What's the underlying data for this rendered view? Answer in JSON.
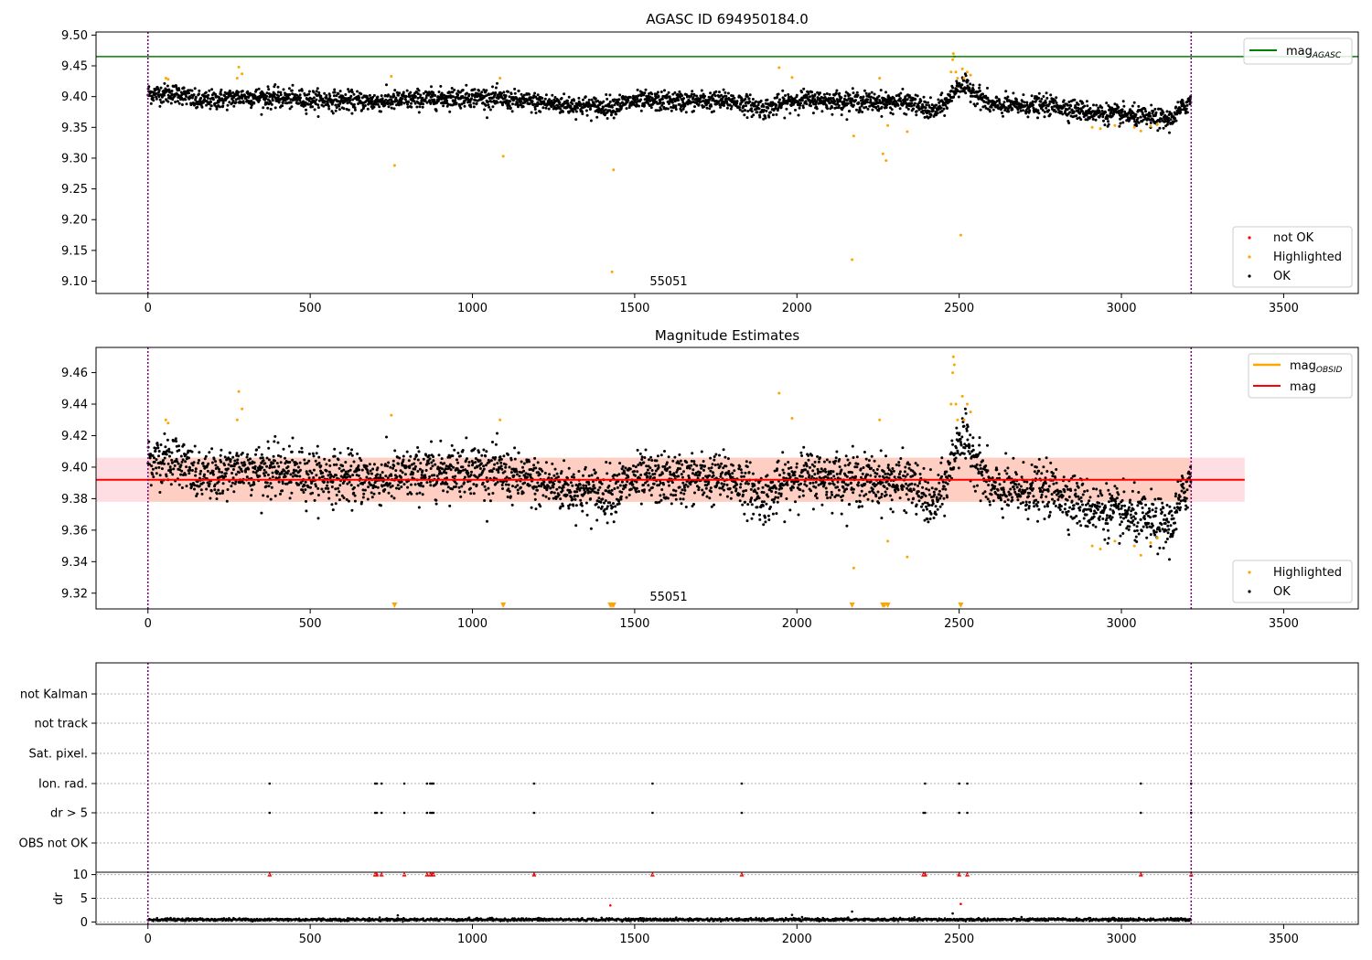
{
  "figure_title": "AGASC ID 694950184.0",
  "colors": {
    "ok": "#000000",
    "highlighted": "#ffa500",
    "not_ok": "#ff0000",
    "mag_agasc": "#008000",
    "mag_obsid": "#ffa500",
    "mag": "#ff0000",
    "band": "#ffb6c1",
    "obs_boundary": "#800080",
    "grid": "#b0b0b0"
  },
  "chart_data": [
    {
      "type": "scatter",
      "title": "AGASC ID 694950184.0",
      "xlim": [
        -160,
        3730
      ],
      "ylim": [
        9.08,
        9.505
      ],
      "x_ticks": [
        0,
        500,
        1000,
        1500,
        2000,
        2500,
        3000,
        3500
      ],
      "y_ticks": [
        9.1,
        9.15,
        9.2,
        9.25,
        9.3,
        9.35,
        9.4,
        9.45,
        9.5
      ],
      "y_tick_labels": [
        "9.10",
        "9.15",
        "9.20",
        "9.25",
        "9.30",
        "9.35",
        "9.40",
        "9.45",
        "9.50"
      ],
      "obsid_label": "55051",
      "obs_boundaries": [
        0,
        3215
      ],
      "n_points": 3215,
      "baseline_profile": [
        [
          0,
          9.405
        ],
        [
          100,
          9.405
        ],
        [
          150,
          9.392
        ],
        [
          250,
          9.397
        ],
        [
          300,
          9.4
        ],
        [
          500,
          9.395
        ],
        [
          700,
          9.392
        ],
        [
          1000,
          9.4
        ],
        [
          1200,
          9.39
        ],
        [
          1400,
          9.383
        ],
        [
          1500,
          9.392
        ],
        [
          1800,
          9.393
        ],
        [
          1900,
          9.38
        ],
        [
          2000,
          9.395
        ],
        [
          2200,
          9.392
        ],
        [
          2350,
          9.39
        ],
        [
          2420,
          9.375
        ],
        [
          2460,
          9.39
        ],
        [
          2500,
          9.42
        ],
        [
          2540,
          9.41
        ],
        [
          2600,
          9.385
        ],
        [
          2800,
          9.385
        ],
        [
          2900,
          9.375
        ],
        [
          3000,
          9.37
        ],
        [
          3150,
          9.362
        ],
        [
          3215,
          9.395
        ]
      ],
      "noise": 0.008,
      "mag_agasc": 9.465,
      "highlighted_points": [
        [
          55,
          9.43
        ],
        [
          62,
          9.428
        ],
        [
          275,
          9.43
        ],
        [
          280,
          9.448
        ],
        [
          290,
          9.437
        ],
        [
          750,
          9.433
        ],
        [
          760,
          9.288
        ],
        [
          1085,
          9.43
        ],
        [
          1095,
          9.303
        ],
        [
          1430,
          9.115
        ],
        [
          1435,
          9.281
        ],
        [
          1945,
          9.447
        ],
        [
          1985,
          9.431
        ],
        [
          2170,
          9.135
        ],
        [
          2175,
          9.336
        ],
        [
          2255,
          9.43
        ],
        [
          2265,
          9.307
        ],
        [
          2275,
          9.296
        ],
        [
          2280,
          9.353
        ],
        [
          2340,
          9.343
        ],
        [
          2475,
          9.44
        ],
        [
          2480,
          9.46
        ],
        [
          2482,
          9.47
        ],
        [
          2485,
          9.465
        ],
        [
          2490,
          9.44
        ],
        [
          2495,
          9.43
        ],
        [
          2505,
          9.175
        ],
        [
          2510,
          9.445
        ],
        [
          2515,
          9.43
        ],
        [
          2525,
          9.44
        ],
        [
          2535,
          9.435
        ],
        [
          2910,
          9.35
        ],
        [
          2935,
          9.348
        ],
        [
          2980,
          9.353
        ],
        [
          3040,
          9.35
        ],
        [
          3060,
          9.344
        ],
        [
          3090,
          9.352
        ],
        [
          3110,
          9.355
        ]
      ],
      "legend_lines": [
        {
          "name": "mag_AGASC",
          "color": "#008000"
        }
      ],
      "legend_points": [
        {
          "name": "not OK",
          "color": "#ff0000"
        },
        {
          "name": "Highlighted",
          "color": "#ffa500"
        },
        {
          "name": "OK",
          "color": "#000000"
        }
      ]
    },
    {
      "type": "scatter",
      "title": "Magnitude Estimates",
      "xlim": [
        -160,
        3730
      ],
      "ylim": [
        9.31,
        9.476
      ],
      "x_ticks": [
        0,
        500,
        1000,
        1500,
        2000,
        2500,
        3000,
        3500
      ],
      "y_ticks": [
        9.32,
        9.34,
        9.36,
        9.38,
        9.4,
        9.42,
        9.44,
        9.46
      ],
      "y_tick_labels": [
        "9.32",
        "9.34",
        "9.36",
        "9.38",
        "9.40",
        "9.42",
        "9.44",
        "9.46"
      ],
      "obsid_label": "55051",
      "obs_boundaries": [
        0,
        3215
      ],
      "mag_obsid": 9.392,
      "mag": 9.392,
      "mag_band": [
        9.378,
        9.406
      ],
      "mag_line_x": [
        -160,
        3380
      ],
      "off_scale_markers_x": [
        760,
        1095,
        1425,
        1430,
        1435,
        2170,
        2265,
        2270,
        2280,
        2505
      ],
      "legend_lines": [
        {
          "name": "mag_OBSID",
          "color": "#ffa500"
        },
        {
          "name": "mag",
          "color": "#ff0000"
        }
      ],
      "legend_points": [
        {
          "name": "Highlighted",
          "color": "#ffa500"
        },
        {
          "name": "OK",
          "color": "#000000"
        }
      ]
    },
    {
      "type": "scatter",
      "title": "",
      "xlim": [
        -160,
        3730
      ],
      "x_ticks": [
        0,
        500,
        1000,
        1500,
        2000,
        2500,
        3000,
        3500
      ],
      "flag_rows": [
        "not Kalman",
        "not track",
        "Sat. pixel.",
        "Ion. rad.",
        "dr > 5",
        "OBS not OK"
      ],
      "flag_events": {
        "Ion. rad.": [
          375,
          700,
          705,
          720,
          790,
          860,
          870,
          875,
          880,
          1190,
          1555,
          1830,
          2395,
          2500,
          2525,
          3060,
          3215
        ],
        "dr > 5": [
          375,
          700,
          705,
          720,
          790,
          860,
          870,
          875,
          880,
          1190,
          1555,
          1830,
          2390,
          2395,
          2500,
          2525,
          3060,
          3215
        ]
      },
      "ylabel": "dr",
      "dr_ylim": [
        -0.5,
        10.5
      ],
      "dr_ticks": [
        0,
        5,
        10
      ],
      "dr_baseline": 0.5,
      "dr_outliers": [
        [
          770,
          1.4
        ],
        [
          1425,
          3.5
        ],
        [
          1985,
          1.5
        ],
        [
          2170,
          2.2
        ],
        [
          2480,
          1.8
        ],
        [
          2505,
          3.8
        ]
      ],
      "dr_clipped_x": [
        375,
        700,
        705,
        720,
        790,
        860,
        870,
        875,
        880,
        1190,
        1555,
        1830,
        2390,
        2395,
        2500,
        2525,
        3060,
        3215
      ],
      "obs_boundaries": [
        0,
        3215
      ]
    }
  ]
}
